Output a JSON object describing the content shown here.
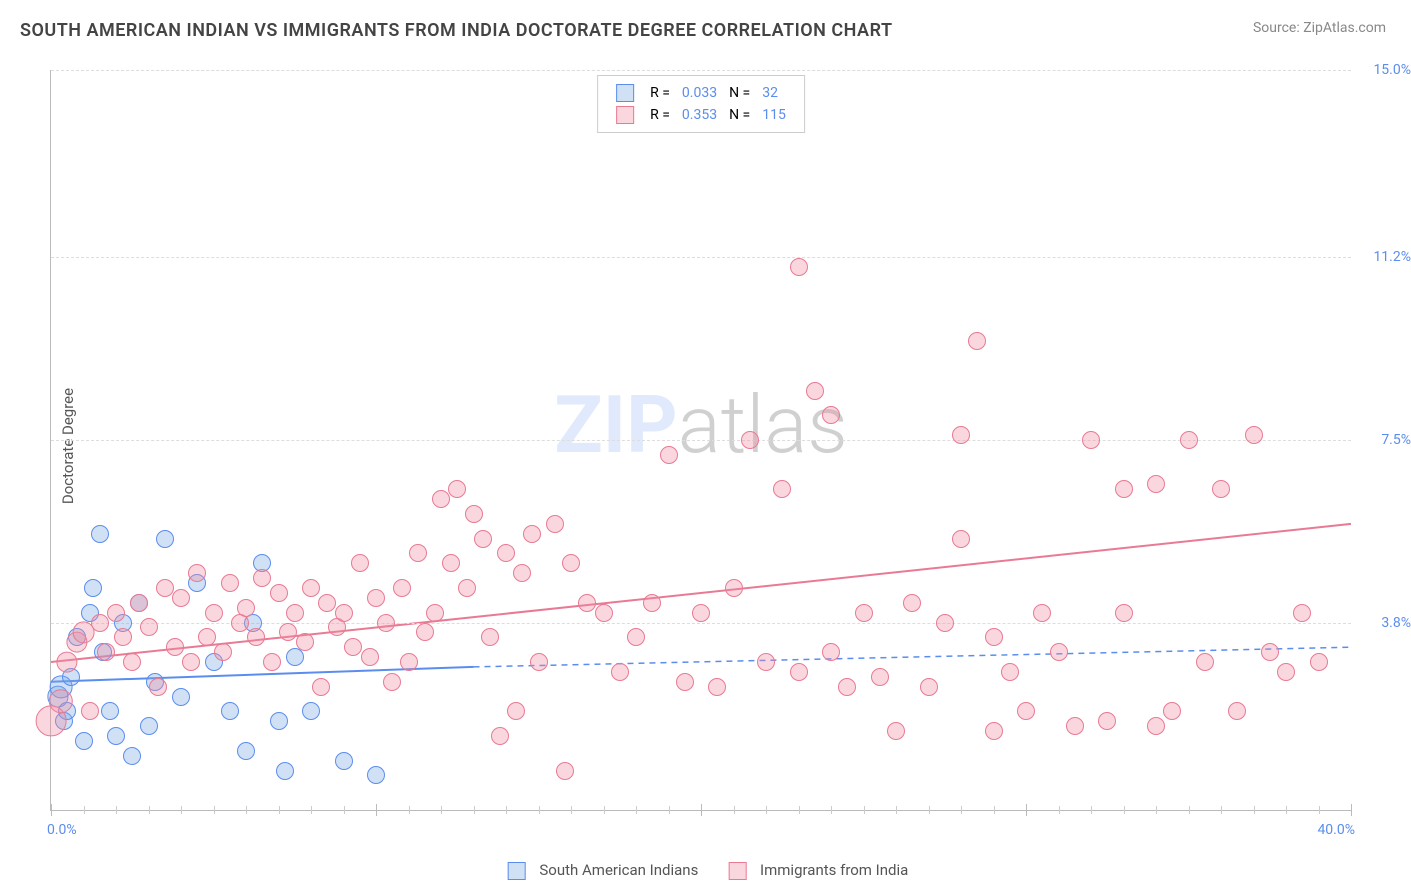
{
  "title": "SOUTH AMERICAN INDIAN VS IMMIGRANTS FROM INDIA DOCTORATE DEGREE CORRELATION CHART",
  "source": "Source: ZipAtlas.com",
  "ylabel": "Doctorate Degree",
  "watermark_prefix": "ZIP",
  "watermark_suffix": "atlas",
  "chart": {
    "type": "scatter",
    "xlim": [
      0,
      40
    ],
    "ylim": [
      0,
      15
    ],
    "xlim_labels": [
      "0.0%",
      "40.0%"
    ],
    "ytick_labels": [
      {
        "v": 3.8,
        "label": "3.8%"
      },
      {
        "v": 7.5,
        "label": "7.5%"
      },
      {
        "v": 11.2,
        "label": "11.2%"
      },
      {
        "v": 15.0,
        "label": "15.0%"
      }
    ],
    "xticks_major": [
      0,
      10,
      20,
      30,
      40
    ],
    "xticks_minor": [
      1,
      2,
      3,
      4,
      5,
      6,
      7,
      8,
      9,
      11,
      12,
      13,
      14,
      15,
      16,
      17,
      18,
      19,
      21,
      22,
      23,
      24,
      25,
      26,
      27,
      28,
      29,
      31,
      32,
      33,
      34,
      35,
      36,
      37,
      38,
      39
    ],
    "grid_color": "#dddddd",
    "background": "#ffffff",
    "marker_base_radius": 8,
    "series": [
      {
        "name": "South American Indians",
        "color_fill": "rgba(120,170,230,0.35)",
        "color_stroke": "#5b8def",
        "R": "0.033",
        "N": "32",
        "trend": {
          "x0": 0,
          "y0": 2.6,
          "x1": 13,
          "y1": 2.9,
          "x1_ext": 40,
          "y1_ext": 3.3,
          "solid_end": 13,
          "stroke_width": 2
        },
        "points": [
          {
            "x": 0.2,
            "y": 2.3,
            "s": 1.2
          },
          {
            "x": 0.3,
            "y": 2.5,
            "s": 1.3
          },
          {
            "x": 0.4,
            "y": 1.8,
            "s": 1.0
          },
          {
            "x": 0.5,
            "y": 2.0,
            "s": 1.0
          },
          {
            "x": 0.6,
            "y": 2.7,
            "s": 1.0
          },
          {
            "x": 0.8,
            "y": 3.5,
            "s": 1.0
          },
          {
            "x": 1.0,
            "y": 1.4,
            "s": 1.0
          },
          {
            "x": 1.2,
            "y": 4.0,
            "s": 1.0
          },
          {
            "x": 1.3,
            "y": 4.5,
            "s": 1.0
          },
          {
            "x": 1.5,
            "y": 5.6,
            "s": 1.0
          },
          {
            "x": 1.6,
            "y": 3.2,
            "s": 1.0
          },
          {
            "x": 1.8,
            "y": 2.0,
            "s": 1.0
          },
          {
            "x": 2.0,
            "y": 1.5,
            "s": 1.0
          },
          {
            "x": 2.2,
            "y": 3.8,
            "s": 1.0
          },
          {
            "x": 2.5,
            "y": 1.1,
            "s": 1.0
          },
          {
            "x": 2.7,
            "y": 4.2,
            "s": 1.0
          },
          {
            "x": 3.0,
            "y": 1.7,
            "s": 1.0
          },
          {
            "x": 3.2,
            "y": 2.6,
            "s": 1.0
          },
          {
            "x": 3.5,
            "y": 5.5,
            "s": 1.0
          },
          {
            "x": 4.0,
            "y": 2.3,
            "s": 1.0
          },
          {
            "x": 4.5,
            "y": 4.6,
            "s": 1.0
          },
          {
            "x": 5.0,
            "y": 3.0,
            "s": 1.0
          },
          {
            "x": 5.5,
            "y": 2.0,
            "s": 1.0
          },
          {
            "x": 6.0,
            "y": 1.2,
            "s": 1.0
          },
          {
            "x": 6.2,
            "y": 3.8,
            "s": 1.0
          },
          {
            "x": 6.5,
            "y": 5.0,
            "s": 1.0
          },
          {
            "x": 7.0,
            "y": 1.8,
            "s": 1.0
          },
          {
            "x": 7.2,
            "y": 0.8,
            "s": 1.0
          },
          {
            "x": 7.5,
            "y": 3.1,
            "s": 1.0
          },
          {
            "x": 8.0,
            "y": 2.0,
            "s": 1.0
          },
          {
            "x": 9.0,
            "y": 1.0,
            "s": 1.0
          },
          {
            "x": 10.0,
            "y": 0.7,
            "s": 1.0
          }
        ]
      },
      {
        "name": "Immigrants from India",
        "color_fill": "rgba(240,140,160,0.35)",
        "color_stroke": "#e87a94",
        "R": "0.353",
        "N": "115",
        "trend": {
          "x0": 0,
          "y0": 3.0,
          "x1": 40,
          "y1": 5.8,
          "stroke_width": 2
        },
        "points": [
          {
            "x": 0.0,
            "y": 1.8,
            "s": 1.8
          },
          {
            "x": 0.3,
            "y": 2.2,
            "s": 1.4
          },
          {
            "x": 0.5,
            "y": 3.0,
            "s": 1.2
          },
          {
            "x": 0.8,
            "y": 3.4,
            "s": 1.2
          },
          {
            "x": 1.0,
            "y": 3.6,
            "s": 1.3
          },
          {
            "x": 1.2,
            "y": 2.0,
            "s": 1.0
          },
          {
            "x": 1.5,
            "y": 3.8,
            "s": 1.0
          },
          {
            "x": 1.7,
            "y": 3.2,
            "s": 1.0
          },
          {
            "x": 2.0,
            "y": 4.0,
            "s": 1.0
          },
          {
            "x": 2.2,
            "y": 3.5,
            "s": 1.0
          },
          {
            "x": 2.5,
            "y": 3.0,
            "s": 1.0
          },
          {
            "x": 2.7,
            "y": 4.2,
            "s": 1.0
          },
          {
            "x": 3.0,
            "y": 3.7,
            "s": 1.0
          },
          {
            "x": 3.3,
            "y": 2.5,
            "s": 1.0
          },
          {
            "x": 3.5,
            "y": 4.5,
            "s": 1.0
          },
          {
            "x": 3.8,
            "y": 3.3,
            "s": 1.0
          },
          {
            "x": 4.0,
            "y": 4.3,
            "s": 1.0
          },
          {
            "x": 4.3,
            "y": 3.0,
            "s": 1.0
          },
          {
            "x": 4.5,
            "y": 4.8,
            "s": 1.0
          },
          {
            "x": 4.8,
            "y": 3.5,
            "s": 1.0
          },
          {
            "x": 5.0,
            "y": 4.0,
            "s": 1.0
          },
          {
            "x": 5.3,
            "y": 3.2,
            "s": 1.0
          },
          {
            "x": 5.5,
            "y": 4.6,
            "s": 1.0
          },
          {
            "x": 5.8,
            "y": 3.8,
            "s": 1.0
          },
          {
            "x": 6.0,
            "y": 4.1,
            "s": 1.0
          },
          {
            "x": 6.3,
            "y": 3.5,
            "s": 1.0
          },
          {
            "x": 6.5,
            "y": 4.7,
            "s": 1.0
          },
          {
            "x": 6.8,
            "y": 3.0,
            "s": 1.0
          },
          {
            "x": 7.0,
            "y": 4.4,
            "s": 1.0
          },
          {
            "x": 7.3,
            "y": 3.6,
            "s": 1.0
          },
          {
            "x": 7.5,
            "y": 4.0,
            "s": 1.0
          },
          {
            "x": 7.8,
            "y": 3.4,
            "s": 1.0
          },
          {
            "x": 8.0,
            "y": 4.5,
            "s": 1.0
          },
          {
            "x": 8.3,
            "y": 2.5,
            "s": 1.0
          },
          {
            "x": 8.5,
            "y": 4.2,
            "s": 1.0
          },
          {
            "x": 8.8,
            "y": 3.7,
            "s": 1.0
          },
          {
            "x": 9.0,
            "y": 4.0,
            "s": 1.0
          },
          {
            "x": 9.3,
            "y": 3.3,
            "s": 1.0
          },
          {
            "x": 9.5,
            "y": 5.0,
            "s": 1.0
          },
          {
            "x": 9.8,
            "y": 3.1,
            "s": 1.0
          },
          {
            "x": 10.0,
            "y": 4.3,
            "s": 1.0
          },
          {
            "x": 10.3,
            "y": 3.8,
            "s": 1.0
          },
          {
            "x": 10.5,
            "y": 2.6,
            "s": 1.0
          },
          {
            "x": 10.8,
            "y": 4.5,
            "s": 1.0
          },
          {
            "x": 11.0,
            "y": 3.0,
            "s": 1.0
          },
          {
            "x": 11.3,
            "y": 5.2,
            "s": 1.0
          },
          {
            "x": 11.5,
            "y": 3.6,
            "s": 1.0
          },
          {
            "x": 11.8,
            "y": 4.0,
            "s": 1.0
          },
          {
            "x": 12.0,
            "y": 6.3,
            "s": 1.0
          },
          {
            "x": 12.3,
            "y": 5.0,
            "s": 1.0
          },
          {
            "x": 12.5,
            "y": 6.5,
            "s": 1.0
          },
          {
            "x": 12.8,
            "y": 4.5,
            "s": 1.0
          },
          {
            "x": 13.0,
            "y": 6.0,
            "s": 1.0
          },
          {
            "x": 13.3,
            "y": 5.5,
            "s": 1.0
          },
          {
            "x": 13.5,
            "y": 3.5,
            "s": 1.0
          },
          {
            "x": 13.8,
            "y": 1.5,
            "s": 1.0
          },
          {
            "x": 14.0,
            "y": 5.2,
            "s": 1.0
          },
          {
            "x": 14.3,
            "y": 2.0,
            "s": 1.0
          },
          {
            "x": 14.5,
            "y": 4.8,
            "s": 1.0
          },
          {
            "x": 14.8,
            "y": 5.6,
            "s": 1.0
          },
          {
            "x": 15.0,
            "y": 3.0,
            "s": 1.0
          },
          {
            "x": 15.5,
            "y": 5.8,
            "s": 1.0
          },
          {
            "x": 15.8,
            "y": 0.8,
            "s": 1.0
          },
          {
            "x": 16.0,
            "y": 5.0,
            "s": 1.0
          },
          {
            "x": 16.5,
            "y": 4.2,
            "s": 1.0
          },
          {
            "x": 17.0,
            "y": 4.0,
            "s": 1.0
          },
          {
            "x": 17.5,
            "y": 2.8,
            "s": 1.0
          },
          {
            "x": 18.0,
            "y": 3.5,
            "s": 1.0
          },
          {
            "x": 18.5,
            "y": 4.2,
            "s": 1.0
          },
          {
            "x": 19.0,
            "y": 7.2,
            "s": 1.0
          },
          {
            "x": 19.5,
            "y": 2.6,
            "s": 1.0
          },
          {
            "x": 20.0,
            "y": 4.0,
            "s": 1.0
          },
          {
            "x": 20.5,
            "y": 2.5,
            "s": 1.0
          },
          {
            "x": 21.0,
            "y": 4.5,
            "s": 1.0
          },
          {
            "x": 21.5,
            "y": 7.5,
            "s": 1.0
          },
          {
            "x": 22.0,
            "y": 3.0,
            "s": 1.0
          },
          {
            "x": 22.5,
            "y": 6.5,
            "s": 1.0
          },
          {
            "x": 23.0,
            "y": 2.8,
            "s": 1.0
          },
          {
            "x": 23.0,
            "y": 11.0,
            "s": 1.0
          },
          {
            "x": 23.5,
            "y": 8.5,
            "s": 1.0
          },
          {
            "x": 24.0,
            "y": 3.2,
            "s": 1.0
          },
          {
            "x": 24.0,
            "y": 8.0,
            "s": 1.0
          },
          {
            "x": 24.5,
            "y": 2.5,
            "s": 1.0
          },
          {
            "x": 25.0,
            "y": 4.0,
            "s": 1.0
          },
          {
            "x": 25.5,
            "y": 2.7,
            "s": 1.0
          },
          {
            "x": 26.0,
            "y": 1.6,
            "s": 1.0
          },
          {
            "x": 26.5,
            "y": 4.2,
            "s": 1.0
          },
          {
            "x": 27.0,
            "y": 2.5,
            "s": 1.0
          },
          {
            "x": 27.5,
            "y": 3.8,
            "s": 1.0
          },
          {
            "x": 28.0,
            "y": 5.5,
            "s": 1.0
          },
          {
            "x": 28.0,
            "y": 7.6,
            "s": 1.0
          },
          {
            "x": 28.5,
            "y": 9.5,
            "s": 1.0
          },
          {
            "x": 29.0,
            "y": 1.6,
            "s": 1.0
          },
          {
            "x": 29.0,
            "y": 3.5,
            "s": 1.0
          },
          {
            "x": 29.5,
            "y": 2.8,
            "s": 1.0
          },
          {
            "x": 30.0,
            "y": 2.0,
            "s": 1.0
          },
          {
            "x": 30.5,
            "y": 4.0,
            "s": 1.0
          },
          {
            "x": 31.0,
            "y": 3.2,
            "s": 1.0
          },
          {
            "x": 31.5,
            "y": 1.7,
            "s": 1.0
          },
          {
            "x": 32.0,
            "y": 7.5,
            "s": 1.0
          },
          {
            "x": 32.5,
            "y": 1.8,
            "s": 1.0
          },
          {
            "x": 33.0,
            "y": 4.0,
            "s": 1.0
          },
          {
            "x": 33.0,
            "y": 6.5,
            "s": 1.0
          },
          {
            "x": 34.0,
            "y": 1.7,
            "s": 1.0
          },
          {
            "x": 34.0,
            "y": 6.6,
            "s": 1.0
          },
          {
            "x": 34.5,
            "y": 2.0,
            "s": 1.0
          },
          {
            "x": 35.0,
            "y": 7.5,
            "s": 1.0
          },
          {
            "x": 35.5,
            "y": 3.0,
            "s": 1.0
          },
          {
            "x": 36.0,
            "y": 6.5,
            "s": 1.0
          },
          {
            "x": 36.5,
            "y": 2.0,
            "s": 1.0
          },
          {
            "x": 37.0,
            "y": 7.6,
            "s": 1.0
          },
          {
            "x": 37.5,
            "y": 3.2,
            "s": 1.0
          },
          {
            "x": 38.0,
            "y": 2.8,
            "s": 1.0
          },
          {
            "x": 38.5,
            "y": 4.0,
            "s": 1.0
          },
          {
            "x": 39.0,
            "y": 3.0,
            "s": 1.0
          }
        ]
      }
    ]
  },
  "legend_top": {
    "rows": [
      {
        "sw": "s1",
        "R_label": "R =",
        "R_val": "0.033",
        "N_label": "N =",
        "N_val": "32"
      },
      {
        "sw": "s2",
        "R_label": "R =",
        "R_val": "0.353",
        "N_label": "N =",
        "N_val": "115"
      }
    ]
  },
  "legend_bottom": [
    {
      "sw": "s1",
      "label": "South American Indians"
    },
    {
      "sw": "s2",
      "label": "Immigrants from India"
    }
  ]
}
